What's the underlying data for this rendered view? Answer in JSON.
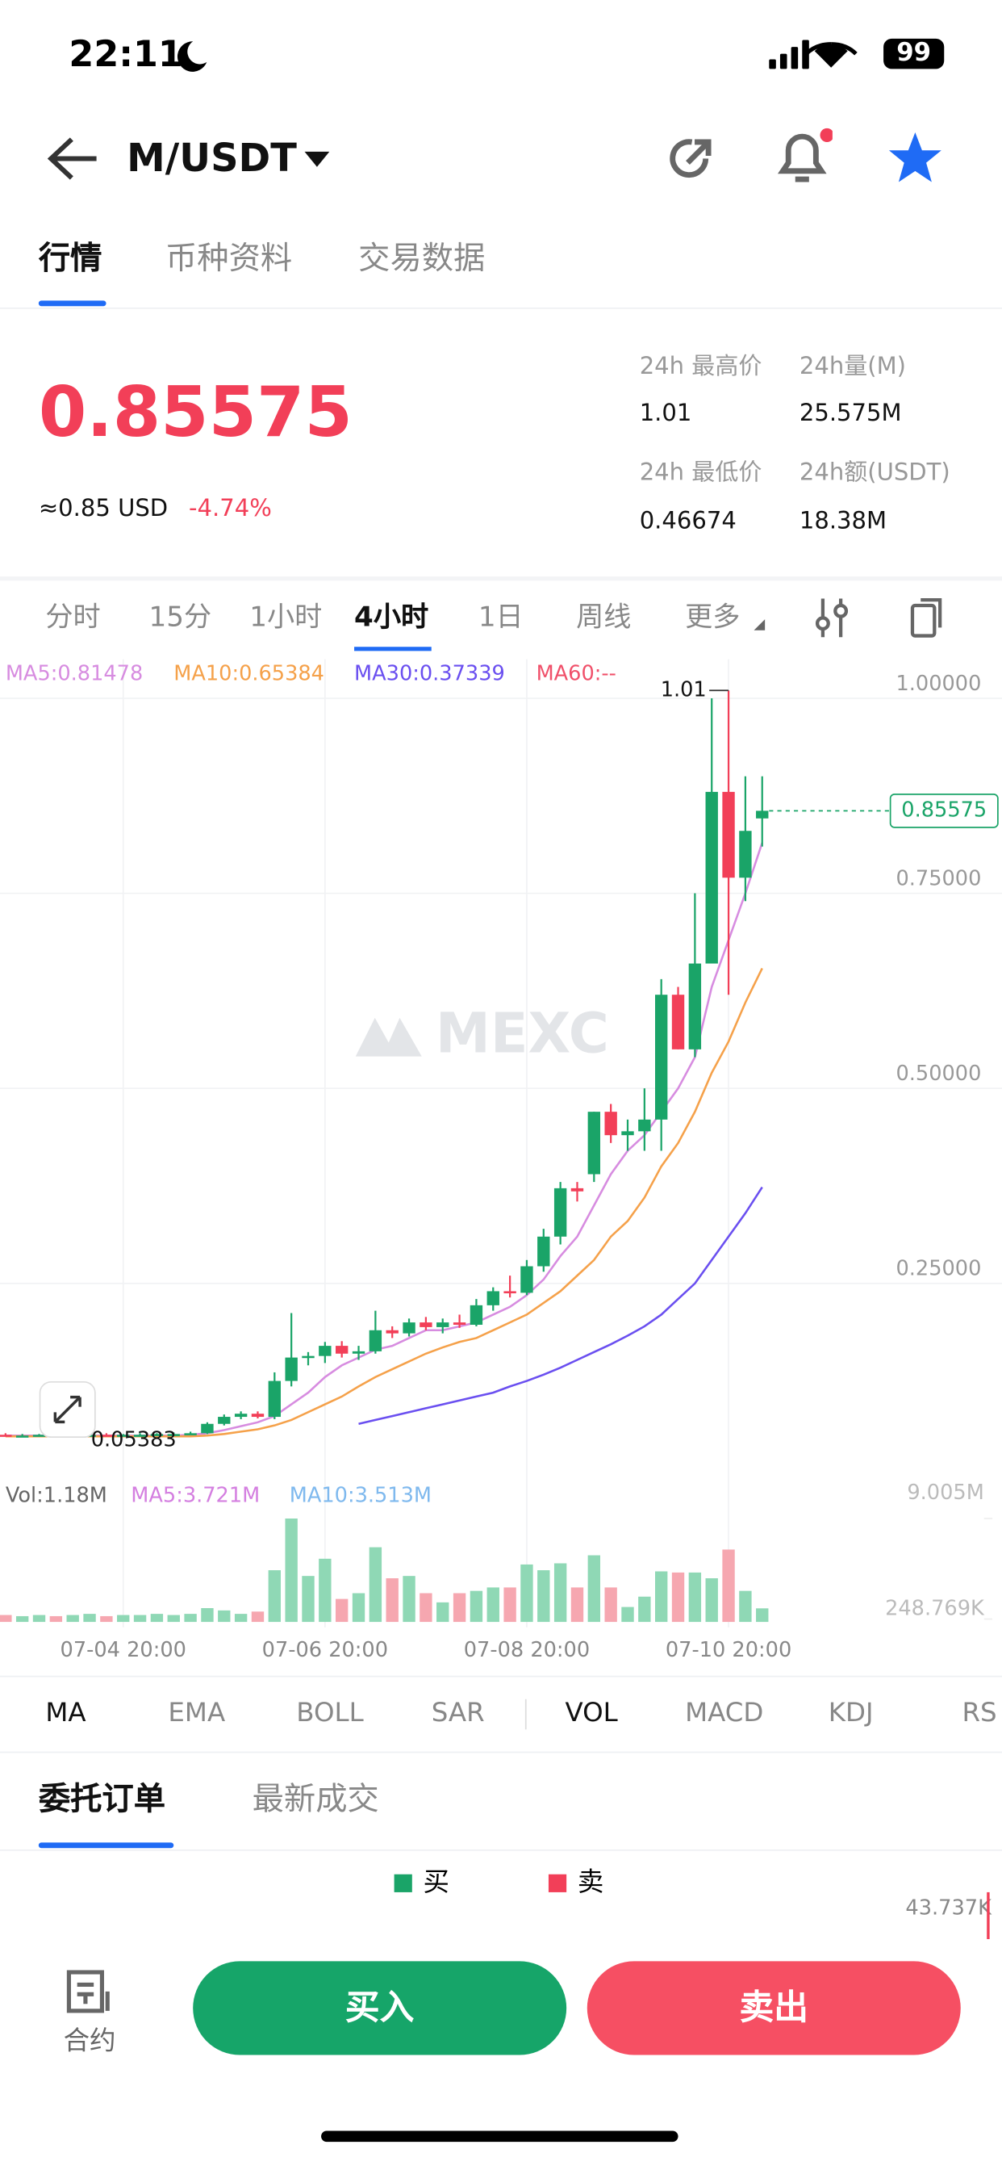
{
  "status_bar": {
    "time": "22:11",
    "battery": "99"
  },
  "header": {
    "pair": "M/USDT"
  },
  "tabs": [
    "行情",
    "币种资料",
    "交易数据"
  ],
  "ticker": {
    "price": "0.85575",
    "usd": "≈0.85 USD",
    "change": "-4.74%",
    "stats": [
      {
        "label": "24h 最高价",
        "value": "1.01"
      },
      {
        "label": "24h量(M)",
        "value": "25.575M"
      },
      {
        "label": "24h 最低价",
        "value": "0.46674"
      },
      {
        "label": "24h额(USDT)",
        "value": "18.38M"
      }
    ]
  },
  "intervals": [
    "分时",
    "15分",
    "1小时",
    "4小时",
    "1日",
    "周线",
    "更多"
  ],
  "chart_data": [
    {
      "type": "candlestick",
      "watermark": "MEXC",
      "high_label": "1.01",
      "low_label": "0.05383",
      "last_label": "0.85575",
      "up_color": "#1aa468",
      "down_color": "#f23f58",
      "categories": [
        null,
        null,
        null,
        null,
        null,
        null,
        null,
        "07-04 20:00",
        null,
        null,
        null,
        null,
        null,
        null,
        null,
        null,
        null,
        null,
        null,
        "07-06 20:00",
        null,
        null,
        null,
        null,
        null,
        null,
        null,
        null,
        null,
        null,
        null,
        "07-08 20:00",
        null,
        null,
        null,
        null,
        null,
        null,
        null,
        null,
        null,
        null,
        null,
        "07-10 20:00",
        null,
        null
      ],
      "open": [
        0.056,
        0.055,
        0.055,
        0.056,
        0.055,
        0.055,
        0.056,
        0.055,
        0.056,
        0.056,
        0.057,
        0.057,
        0.058,
        0.07,
        0.079,
        0.083,
        0.079,
        0.125,
        0.155,
        0.157,
        0.17,
        0.16,
        0.163,
        0.19,
        0.186,
        0.2,
        0.194,
        0.2,
        0.197,
        0.222,
        0.24,
        0.238,
        0.272,
        0.31,
        0.372,
        0.39,
        0.47,
        0.44,
        0.445,
        0.46,
        0.62,
        0.55,
        0.66,
        0.88,
        0.77,
        0.846
      ],
      "high": [
        0.058,
        0.057,
        0.057,
        0.058,
        0.057,
        0.057,
        0.058,
        0.057,
        0.058,
        0.058,
        0.059,
        0.06,
        0.072,
        0.082,
        0.086,
        0.086,
        0.136,
        0.212,
        0.162,
        0.175,
        0.176,
        0.17,
        0.215,
        0.195,
        0.205,
        0.207,
        0.205,
        0.21,
        0.23,
        0.245,
        0.26,
        0.28,
        0.32,
        0.38,
        0.38,
        0.47,
        0.48,
        0.46,
        0.5,
        0.64,
        0.63,
        0.75,
        1.0,
        1.01,
        0.9,
        0.9
      ],
      "low": [
        0.054,
        0.054,
        0.054,
        0.054,
        0.054,
        0.05383,
        0.054,
        0.054,
        0.055,
        0.055,
        0.056,
        0.056,
        0.057,
        0.068,
        0.076,
        0.077,
        0.076,
        0.118,
        0.145,
        0.148,
        0.155,
        0.152,
        0.16,
        0.18,
        0.182,
        0.19,
        0.186,
        0.193,
        0.195,
        0.215,
        0.232,
        0.235,
        0.265,
        0.3,
        0.355,
        0.38,
        0.43,
        0.42,
        0.42,
        0.42,
        0.55,
        0.54,
        0.66,
        0.62,
        0.74,
        0.81
      ],
      "close": [
        0.055,
        0.055,
        0.056,
        0.055,
        0.055,
        0.056,
        0.055,
        0.056,
        0.056,
        0.057,
        0.057,
        0.058,
        0.07,
        0.079,
        0.083,
        0.079,
        0.125,
        0.155,
        0.157,
        0.17,
        0.16,
        0.163,
        0.19,
        0.186,
        0.2,
        0.194,
        0.2,
        0.197,
        0.222,
        0.24,
        0.238,
        0.272,
        0.31,
        0.372,
        0.368,
        0.47,
        0.44,
        0.445,
        0.46,
        0.62,
        0.55,
        0.66,
        0.88,
        0.77,
        0.83,
        0.85575
      ],
      "series": [
        {
          "name": "MA5",
          "legend_label": "MA5:0.81478",
          "color": "#d78ce0",
          "values": [
            0.055,
            0.055,
            0.055,
            0.055,
            0.055,
            0.055,
            0.055,
            0.055,
            0.055,
            0.055,
            0.055,
            0.056,
            0.058,
            0.062,
            0.067,
            0.072,
            0.08,
            0.095,
            0.11,
            0.13,
            0.145,
            0.155,
            0.165,
            0.17,
            0.18,
            0.19,
            0.19,
            0.195,
            0.2,
            0.21,
            0.22,
            0.235,
            0.255,
            0.285,
            0.31,
            0.35,
            0.39,
            0.42,
            0.44,
            0.47,
            0.5,
            0.54,
            0.63,
            0.69,
            0.75,
            0.81478
          ]
        },
        {
          "name": "MA10",
          "legend_label": "MA10:0.65384",
          "color": "#f5a14a",
          "values": [
            0.054,
            0.054,
            0.054,
            0.054,
            0.054,
            0.054,
            0.054,
            0.054,
            0.054,
            0.054,
            0.054,
            0.054,
            0.055,
            0.057,
            0.06,
            0.063,
            0.068,
            0.075,
            0.085,
            0.095,
            0.105,
            0.118,
            0.13,
            0.14,
            0.15,
            0.16,
            0.168,
            0.175,
            0.18,
            0.19,
            0.2,
            0.21,
            0.225,
            0.24,
            0.26,
            0.28,
            0.31,
            0.33,
            0.36,
            0.4,
            0.43,
            0.47,
            0.52,
            0.56,
            0.61,
            0.65384
          ]
        },
        {
          "name": "MA30",
          "legend_label": "MA30:0.37339",
          "color": "#6a4ff0",
          "values": [
            null,
            null,
            null,
            null,
            null,
            null,
            null,
            null,
            null,
            null,
            null,
            null,
            null,
            null,
            null,
            null,
            null,
            null,
            null,
            null,
            null,
            0.07,
            0.075,
            0.08,
            0.085,
            0.09,
            0.095,
            0.1,
            0.105,
            0.11,
            0.118,
            0.125,
            0.133,
            0.142,
            0.152,
            0.162,
            0.172,
            0.183,
            0.195,
            0.21,
            0.23,
            0.25,
            0.28,
            0.31,
            0.34,
            0.37339
          ]
        },
        {
          "name": "MA60",
          "legend_label": "MA60:--",
          "color": "#f0506a"
        }
      ],
      "ylim": [
        0,
        1.05
      ],
      "yticks": [
        {
          "value": 1,
          "label": "1.00000"
        },
        {
          "value": 0.75,
          "label": "0.75000"
        },
        {
          "value": 0.5,
          "label": "0.50000"
        },
        {
          "value": 0.25,
          "label": "0.25000"
        }
      ],
      "grid": true
    },
    {
      "type": "bar",
      "title": "Vol:1.18M",
      "legend_labels": [
        {
          "text": "MA5:3.721M",
          "color": "#d47fe0"
        },
        {
          "text": "MA10:3.513M",
          "color": "#7fb9ee"
        }
      ],
      "values": [
        0.6,
        0.5,
        0.6,
        0.5,
        0.6,
        0.7,
        0.5,
        0.6,
        0.6,
        0.7,
        0.6,
        0.7,
        1.2,
        1.0,
        0.7,
        0.9,
        4.5,
        9.0,
        4.0,
        5.5,
        2.0,
        2.5,
        6.5,
        3.8,
        4.0,
        2.5,
        1.7,
        2.5,
        2.7,
        3.0,
        3.0,
        5.0,
        4.5,
        5.1,
        3.0,
        5.8,
        3.0,
        1.3,
        2.2,
        4.4,
        4.3,
        4.3,
        3.8,
        6.3,
        2.7,
        1.18
      ],
      "up_color": "#8fd8b5",
      "down_color": "#f6a7b0",
      "ylim": [
        0,
        9.005
      ],
      "yticks": [
        {
          "value": 9.005,
          "label": "9.005M"
        },
        {
          "value": 0.248769,
          "label": "248.769K"
        }
      ]
    }
  ],
  "indicators": [
    "MA",
    "EMA",
    "BOLL",
    "SAR",
    "VOL",
    "MACD",
    "KDJ",
    "RS"
  ],
  "book_tabs": [
    "委托订单",
    "最新成交"
  ],
  "book_legend": [
    "买",
    "卖"
  ],
  "book_depth_label": "43.737K",
  "footer": {
    "contract": "合约",
    "buy": "买入",
    "sell": "卖出"
  }
}
